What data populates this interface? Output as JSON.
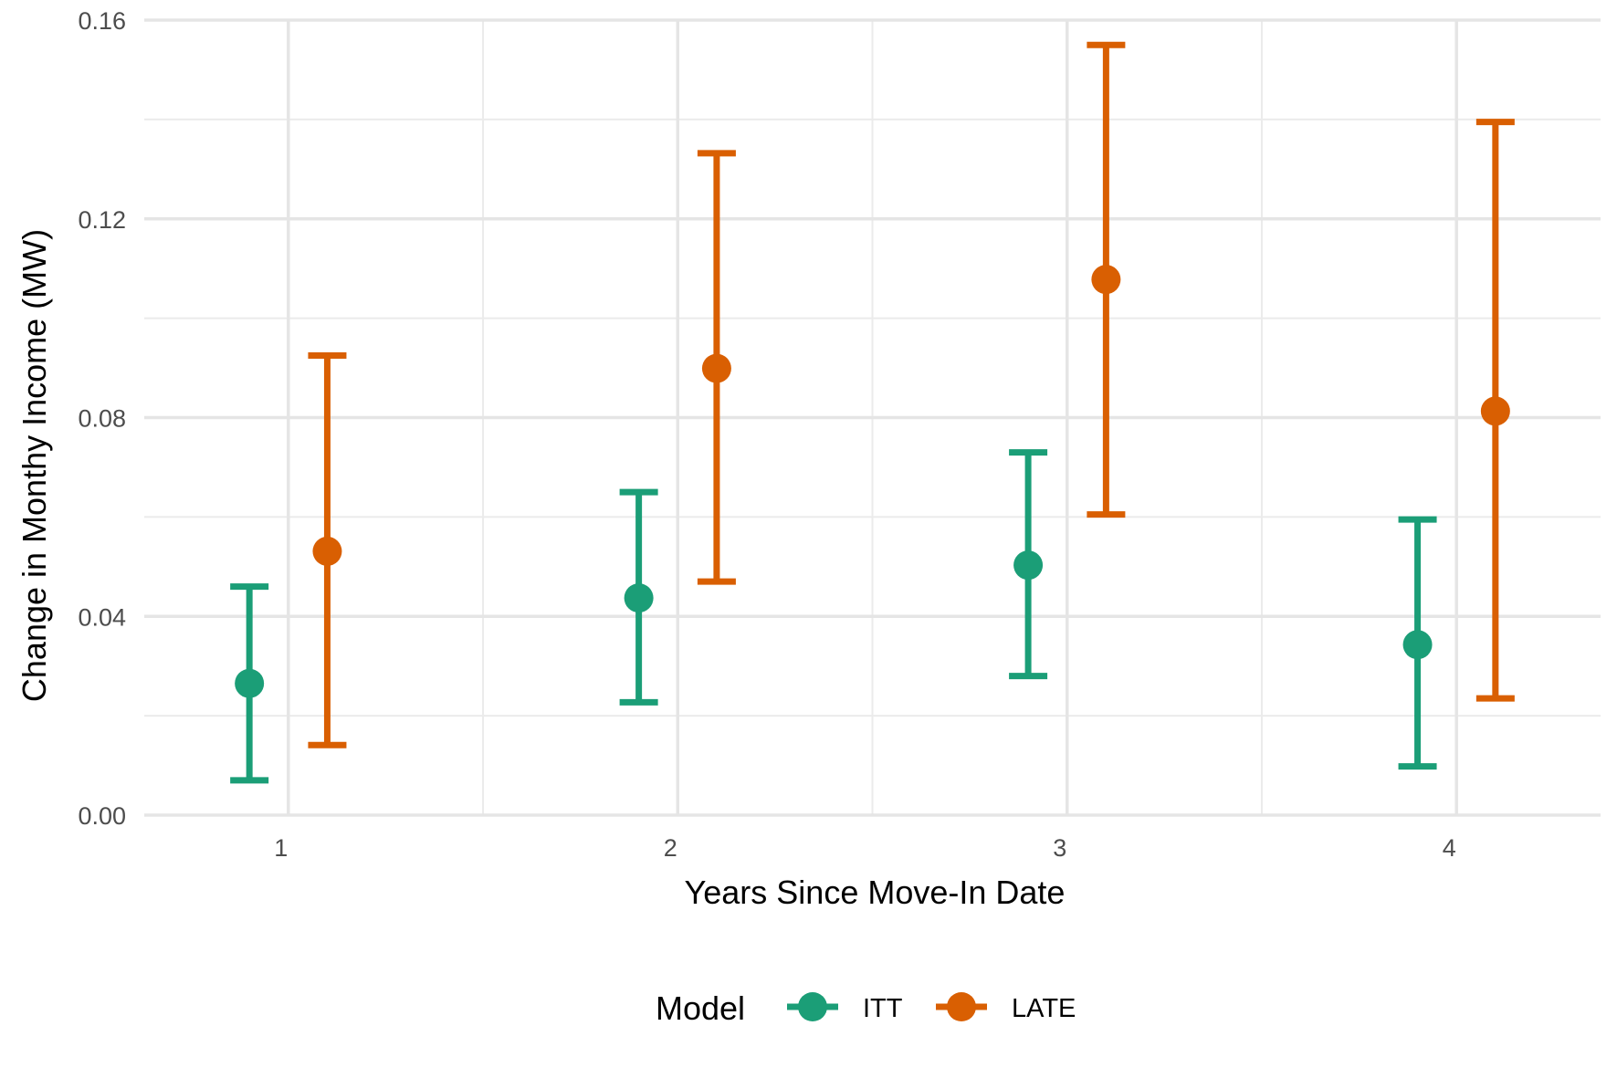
{
  "chart_data": {
    "type": "errorbar",
    "xlabel": "Years Since Move-In Date",
    "ylabel": "Change in Monthy Income (MW)",
    "x": [
      1,
      2,
      3,
      4
    ],
    "x_ticks": [
      "1",
      "2",
      "3",
      "4"
    ],
    "xlim": [
      0.63,
      4.37
    ],
    "ylim": [
      0,
      0.16
    ],
    "y_ticks": [
      "0.00",
      "0.04",
      "0.08",
      "0.12",
      "0.16"
    ],
    "y_tick_values": [
      0,
      0.04,
      0.08,
      0.12,
      0.16
    ],
    "grid": true,
    "legend": {
      "title": "Model",
      "placement": "bottom"
    },
    "series": [
      {
        "name": "ITT",
        "color": "#1b9e77",
        "x_offset": -0.1,
        "estimate": [
          0.0265,
          0.0437,
          0.0503,
          0.0343
        ],
        "lower": [
          0.007,
          0.0227,
          0.028,
          0.0098
        ],
        "upper": [
          0.046,
          0.065,
          0.073,
          0.0595
        ]
      },
      {
        "name": "LATE",
        "color": "#d95f02",
        "x_offset": 0.1,
        "estimate": [
          0.0531,
          0.0899,
          0.1078,
          0.0813
        ],
        "lower": [
          0.0141,
          0.047,
          0.0605,
          0.0235
        ],
        "upper": [
          0.0925,
          0.1332,
          0.155,
          0.1395
        ]
      }
    ]
  }
}
